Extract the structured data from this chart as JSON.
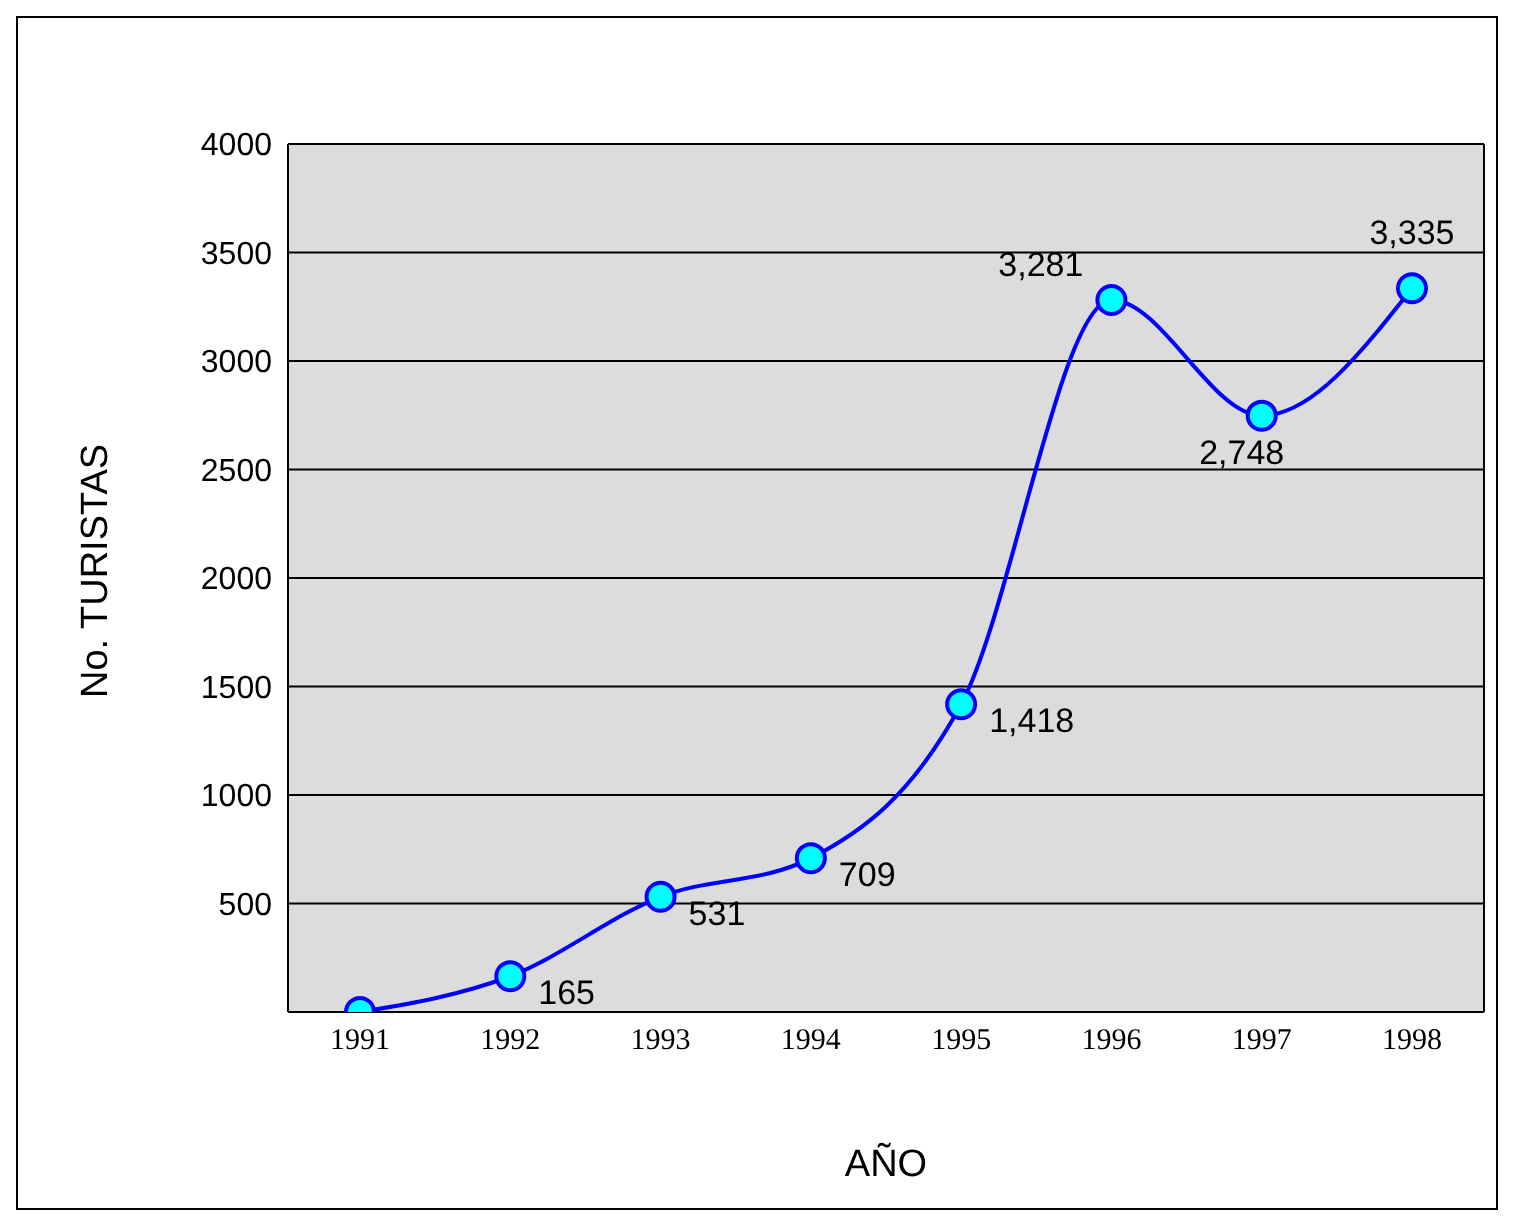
{
  "chart_data": {
    "type": "line",
    "xlabel": "AÑO",
    "ylabel": "No. TURISTAS",
    "categories": [
      "1991",
      "1992",
      "1993",
      "1994",
      "1995",
      "1996",
      "1997",
      "1998"
    ],
    "values": [
      0,
      165,
      531,
      709,
      1418,
      3281,
      2748,
      3335
    ],
    "value_labels": [
      null,
      "165",
      "531",
      "709",
      "1,418",
      "3,281",
      "2,748",
      "3,335"
    ],
    "color": "#0000ff",
    "marker": "circle",
    "grid": "y",
    "ylim": [
      0,
      4000
    ],
    "yticks": [
      500,
      1000,
      1500,
      2000,
      2500,
      3000,
      3500,
      4000
    ]
  }
}
